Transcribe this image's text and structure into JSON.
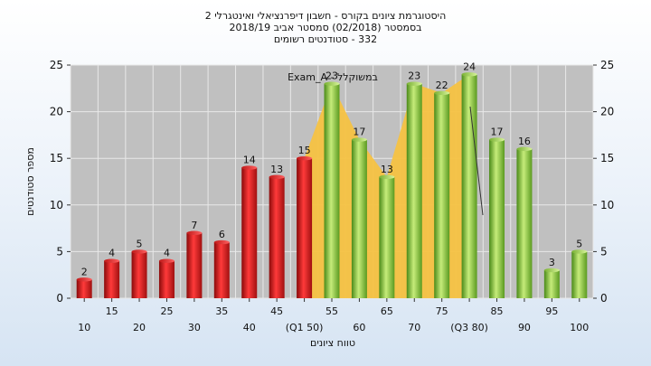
{
  "chart_data": {
    "type": "bar",
    "title_lines": [
      "היסטוגרמת ציונים בקורס - חשבון דיפרנציאלי ואינטגרלי 2",
      "בסמסטר  (02/2018)  סמסטר אביב 2018/19",
      "332 - סטודנטים רשומים"
    ],
    "xlabel": "טווח ציונים",
    "ylabel": "מספר סטודנטים",
    "ylim": [
      0,
      25
    ],
    "yticks": [
      0,
      5,
      10,
      15,
      20,
      25
    ],
    "categories": [
      "10",
      "15",
      "20",
      "25",
      "30",
      "35",
      "40",
      "45",
      "50",
      "55",
      "60",
      "65",
      "70",
      "75",
      "80",
      "85",
      "90",
      "95",
      "100"
    ],
    "values": [
      2,
      4,
      5,
      4,
      7,
      6,
      14,
      13,
      15,
      23,
      17,
      13,
      23,
      22,
      24,
      17,
      16,
      3,
      5
    ],
    "bar_colors": [
      "red",
      "red",
      "red",
      "red",
      "red",
      "red",
      "red",
      "red",
      "red",
      "green",
      "green",
      "green",
      "green",
      "green",
      "green",
      "green",
      "green",
      "green",
      "green"
    ],
    "xtick_labels": [
      "10",
      "15",
      "20",
      "25",
      "30",
      "35",
      "40",
      "45",
      "(Q1 50)",
      "55",
      "60",
      "65",
      "70",
      "75",
      "(Q3 80)",
      "85",
      "90",
      "95",
      "100"
    ],
    "annotation": "Exam_A - במשוקלל",
    "grid": true,
    "colors": {
      "plot_bg": "#c0c0c0",
      "red_bar": "#e02020",
      "green_bar": "#8cc040",
      "iqr_area": "#f5c242"
    }
  }
}
